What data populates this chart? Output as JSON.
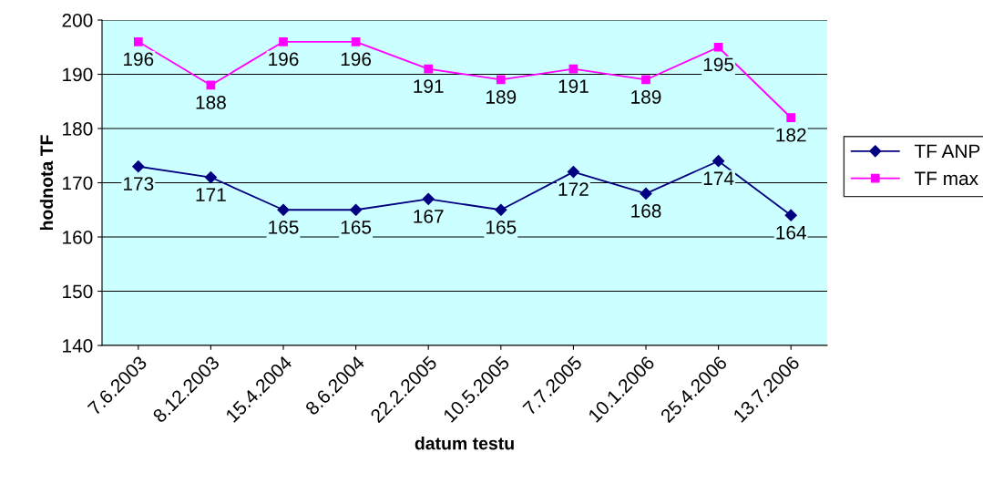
{
  "chart_data": {
    "type": "line",
    "xlabel": "datum testu",
    "ylabel": "hodnota TF",
    "categories": [
      "7.6.2003",
      "8.12.2003",
      "15.4.2004",
      "8.6.2004",
      "22.2.2005",
      "10.5.2005",
      "7.7.2005",
      "10.1.2006",
      "25.4.2006",
      "13.7.2006"
    ],
    "series": [
      {
        "name": "TF ANP",
        "color": "#000080",
        "marker": "diamond",
        "values": [
          173,
          171,
          165,
          165,
          167,
          165,
          172,
          168,
          174,
          164
        ]
      },
      {
        "name": "TF max",
        "color": "#ff00ff",
        "marker": "square",
        "values": [
          196,
          188,
          196,
          196,
          191,
          189,
          191,
          189,
          195,
          182
        ]
      }
    ],
    "ylim": [
      140,
      200
    ],
    "yticks": [
      140,
      150,
      160,
      170,
      180,
      190,
      200
    ],
    "grid": "y",
    "legend": "right",
    "data_labels": true
  }
}
